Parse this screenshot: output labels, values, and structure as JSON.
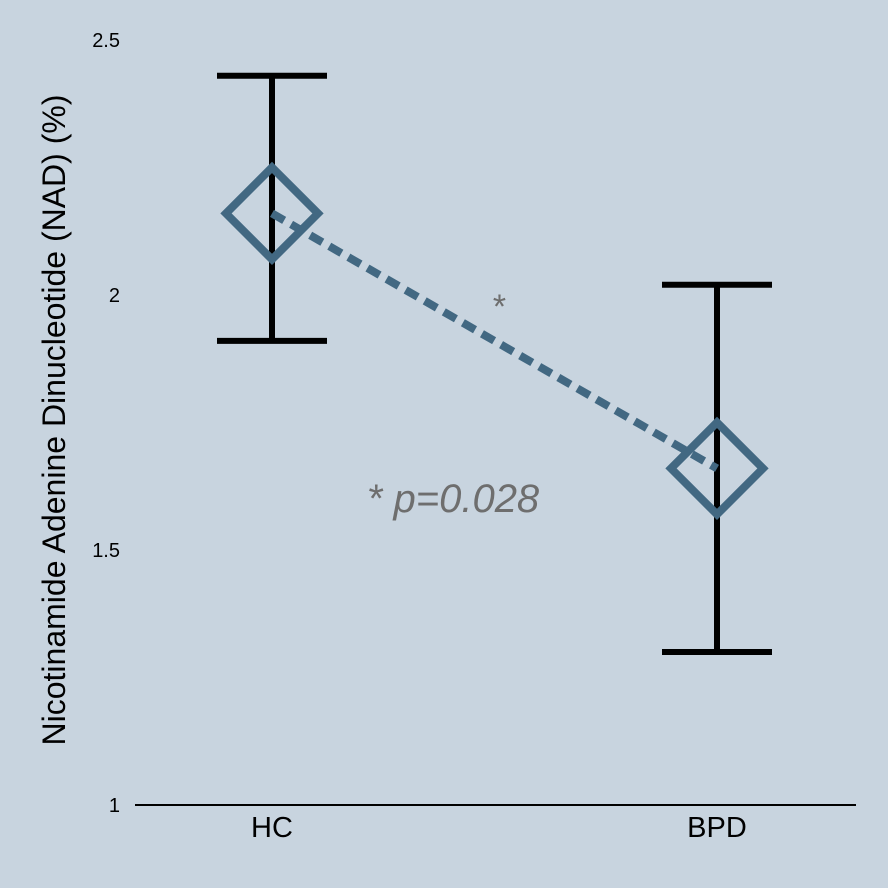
{
  "chart_data": {
    "type": "scatter",
    "ylabel": "Nicotinamide Adenine Dinucleotide (NAD) (%)",
    "xlabel": "",
    "ylim": [
      1,
      2.5
    ],
    "yticks": [
      "1",
      "1.5",
      "2",
      "2.5"
    ],
    "categories": [
      "HC",
      "BPD"
    ],
    "series": [
      {
        "values": [
          2.16,
          1.66
        ],
        "error_upper": [
          2.43,
          2.02
        ],
        "error_lower": [
          1.91,
          1.3
        ]
      }
    ],
    "annotations": {
      "significance_marker": "*",
      "p_value_text": "* p=0.028"
    },
    "grid": false,
    "colors": {
      "background": "#c8d4df",
      "marker": "#426882",
      "error_bar": "#000000",
      "annotation": "#6e6e6e"
    }
  }
}
